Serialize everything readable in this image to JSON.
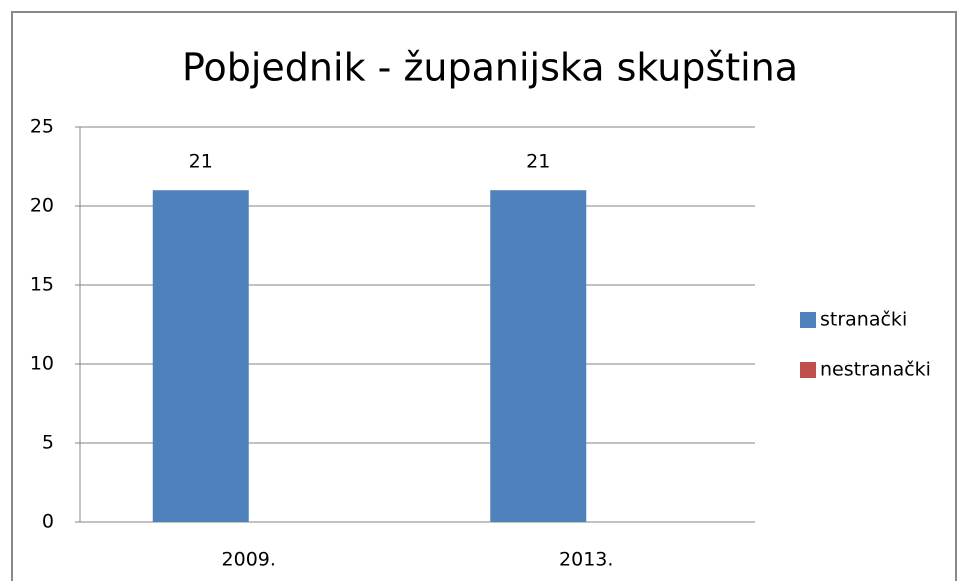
{
  "chart_data": {
    "type": "bar",
    "title": "Pobjednik - županijska skupština",
    "categories": [
      "2009.",
      "2013."
    ],
    "series": [
      {
        "name": "stranački",
        "color": "#4f81bd",
        "values": [
          21,
          21
        ]
      },
      {
        "name": "nestranački",
        "color": "#c0504d",
        "values": [
          null,
          null
        ]
      }
    ],
    "ylim": [
      0,
      25
    ],
    "yticks": [
      0,
      5,
      10,
      15,
      20,
      25
    ],
    "grid": true,
    "legend": "right",
    "data_labels": true
  }
}
